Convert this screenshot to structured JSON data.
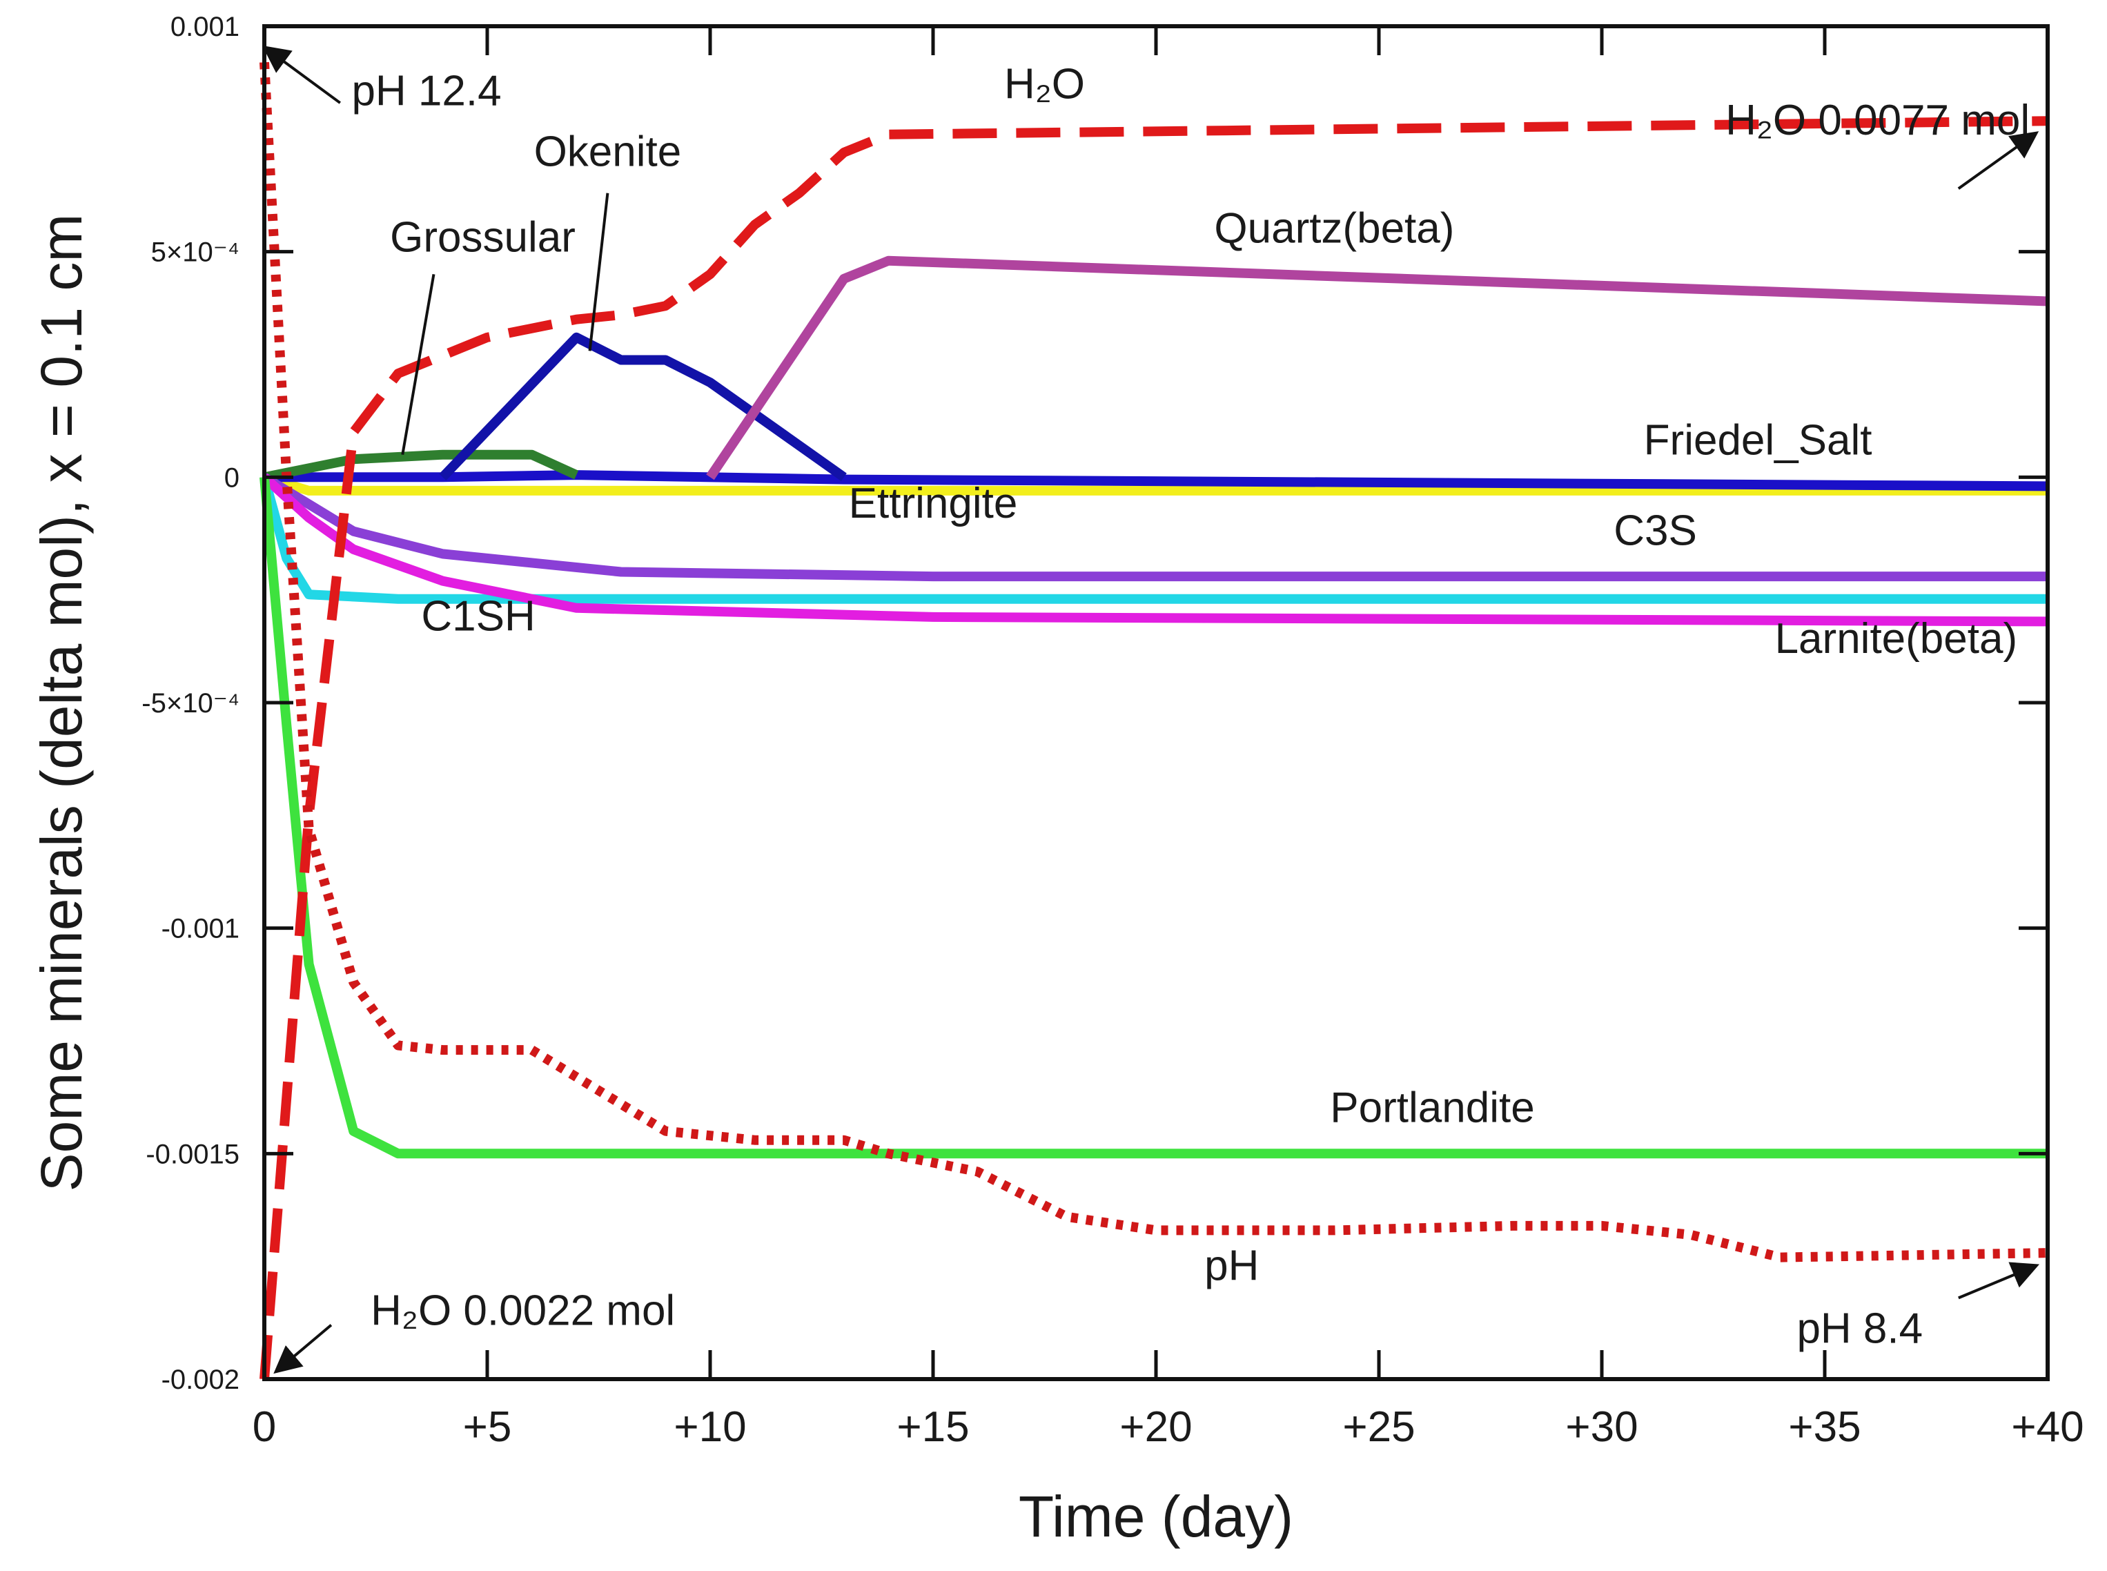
{
  "chart_data": {
    "type": "line",
    "title": "",
    "xlabel": "Time (day)",
    "ylabel": "Some minerals (delta mol), x = 0.1 cm",
    "xlim": [
      0,
      40
    ],
    "ylim": [
      -0.002,
      0.001
    ],
    "grid": false,
    "x_ticks": [
      {
        "value": 0,
        "label": "0"
      },
      {
        "value": 5,
        "label": "+5"
      },
      {
        "value": 10,
        "label": "+10"
      },
      {
        "value": 15,
        "label": "+15"
      },
      {
        "value": 20,
        "label": "+20"
      },
      {
        "value": 25,
        "label": "+25"
      },
      {
        "value": 30,
        "label": "+30"
      },
      {
        "value": 35,
        "label": "+35"
      },
      {
        "value": 40,
        "label": "+40"
      }
    ],
    "y_ticks": [
      {
        "value": 0.001,
        "label": "0.001"
      },
      {
        "value": 0.0005,
        "label": "5×10⁻⁴"
      },
      {
        "value": 0,
        "label": "0"
      },
      {
        "value": -0.0005,
        "label": "-5×10⁻⁴"
      },
      {
        "value": -0.001,
        "label": "-0.001"
      },
      {
        "value": -0.0015,
        "label": "-0.0015"
      },
      {
        "value": -0.002,
        "label": "-0.002"
      }
    ],
    "series": [
      {
        "name": "Ettringite",
        "color": "#f2ee1c",
        "dash": "solid",
        "x": [
          0,
          1,
          40
        ],
        "y": [
          0,
          -3e-05,
          -3e-05
        ]
      },
      {
        "name": "Friedel_Salt",
        "color": "#1a10c8",
        "dash": "solid",
        "x": [
          0,
          4,
          7,
          13,
          40
        ],
        "y": [
          0,
          0.0,
          5e-06,
          -5e-06,
          -2e-05
        ]
      },
      {
        "name": "Grossular",
        "color": "#2f7f2f",
        "dash": "solid",
        "x": [
          0,
          2,
          4,
          6,
          7
        ],
        "y": [
          0,
          4e-05,
          5e-05,
          5e-05,
          5e-06
        ]
      },
      {
        "name": "Okenite",
        "color": "#1212a8",
        "dash": "solid",
        "x": [
          4,
          7,
          8,
          9,
          10,
          13
        ],
        "y": [
          0,
          0.00031,
          0.00026,
          0.00026,
          0.00021,
          0
        ]
      },
      {
        "name": "Quartz(beta)",
        "color": "#b0449e",
        "dash": "solid",
        "x": [
          10,
          13,
          14,
          40
        ],
        "y": [
          0,
          0.00044,
          0.00048,
          0.00039
        ]
      },
      {
        "name": "C3S",
        "color": "#8a3fd6",
        "dash": "solid",
        "x": [
          0,
          1,
          2,
          4,
          8,
          15,
          40
        ],
        "y": [
          0,
          -6e-05,
          -0.00012,
          -0.00017,
          -0.00021,
          -0.00022,
          -0.00022
        ]
      },
      {
        "name": "C1SH",
        "color": "#22d7e6",
        "dash": "solid",
        "x": [
          0,
          0.5,
          1,
          3,
          40
        ],
        "y": [
          0,
          -0.00018,
          -0.00026,
          -0.00027,
          -0.00027
        ]
      },
      {
        "name": "Larnite(beta)",
        "color": "#e21ee0",
        "dash": "solid",
        "x": [
          0,
          1,
          2,
          4,
          7,
          15,
          40
        ],
        "y": [
          0,
          -9e-05,
          -0.00016,
          -0.00023,
          -0.00029,
          -0.00031,
          -0.00032
        ]
      },
      {
        "name": "Portlandite",
        "color": "#3ee23e",
        "dash": "solid",
        "x": [
          0,
          0.5,
          1,
          2,
          3,
          40
        ],
        "y": [
          0,
          -0.00055,
          -0.00108,
          -0.00145,
          -0.0015,
          -0.0015
        ]
      },
      {
        "name": "H2O",
        "color": "#e0191a",
        "dash": "long",
        "x": [
          0,
          1,
          2,
          3,
          5,
          7,
          8,
          9,
          10,
          11,
          12,
          13,
          14,
          40
        ],
        "y": [
          -0.002,
          -0.00075,
          0.0001,
          0.00023,
          0.00031,
          0.00035,
          0.00036,
          0.00038,
          0.00045,
          0.00056,
          0.00063,
          0.00072,
          0.00076,
          0.00079
        ]
      },
      {
        "name": "pH",
        "color": "#d01818",
        "dash": "dotted",
        "x": [
          0,
          0.5,
          1,
          1.5,
          2,
          3,
          4,
          6,
          7,
          9,
          11,
          13,
          14,
          16,
          18,
          20,
          24,
          28,
          30,
          32,
          34,
          40
        ],
        "y": [
          0.00092,
          0.0,
          -0.00078,
          -0.00095,
          -0.00112,
          -0.00126,
          -0.00127,
          -0.00127,
          -0.00133,
          -0.00145,
          -0.00147,
          -0.00147,
          -0.0015,
          -0.00154,
          -0.00164,
          -0.00167,
          -0.00167,
          -0.00166,
          -0.00166,
          -0.00168,
          -0.00173,
          -0.00172
        ]
      }
    ],
    "annotations": [
      {
        "id": "ph-start",
        "text": "pH 12.4",
        "at": [
          0.1,
          0.00092
        ]
      },
      {
        "id": "h2o",
        "text": "H₂O",
        "at": [
          17.5,
          0.00084
        ]
      },
      {
        "id": "okenite",
        "text": "Okenite",
        "at": [
          7.7,
          0.00069
        ]
      },
      {
        "id": "grossular",
        "text": "Grossular",
        "at": [
          4.9,
          0.0005
        ]
      },
      {
        "id": "h2o-end",
        "text": "H₂O 0.0077 mol",
        "at": [
          39.6,
          0.00076
        ]
      },
      {
        "id": "quartz",
        "text": "Quartz(beta)",
        "at": [
          24,
          0.00052
        ]
      },
      {
        "id": "friedel",
        "text": "Friedel_Salt",
        "at": [
          33.5,
          5e-05
        ]
      },
      {
        "id": "ettringite",
        "text": "Ettringite",
        "at": [
          15,
          -9e-05
        ]
      },
      {
        "id": "c3s",
        "text": "C3S",
        "at": [
          31.2,
          -0.00015
        ]
      },
      {
        "id": "c1sh",
        "text": "C1SH",
        "at": [
          4.8,
          -0.00034
        ]
      },
      {
        "id": "larnite",
        "text": "Larnite(beta)",
        "at": [
          36.6,
          -0.00039
        ]
      },
      {
        "id": "portlandite",
        "text": "Portlandite",
        "at": [
          26.2,
          -0.00143
        ]
      },
      {
        "id": "ph",
        "text": "pH",
        "at": [
          21.7,
          -0.00178
        ]
      },
      {
        "id": "ph-end",
        "text": "pH 8.4",
        "at": [
          37.2,
          -0.00192
        ]
      },
      {
        "id": "h2o-start",
        "text": "H₂O 0.0022 mol",
        "at": [
          5.8,
          -0.00188
        ]
      }
    ]
  }
}
